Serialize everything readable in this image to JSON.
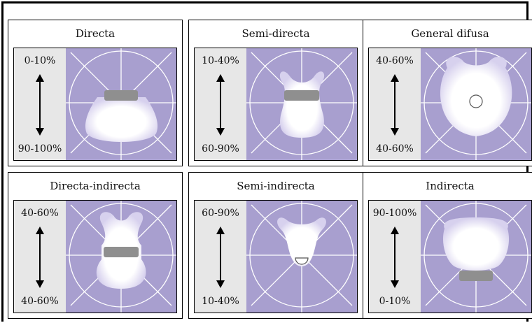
{
  "colors": {
    "bg_purple": "#a89fcf",
    "grid_line": "#ffffff",
    "side_panel": "#e7e7e7",
    "luminaire": "#8f8f8f"
  },
  "cards": [
    {
      "title": "Directa",
      "upper": "0-10%",
      "lower": "90-100%",
      "shape": "direct"
    },
    {
      "title": "Semi-directa",
      "upper": "10-40%",
      "lower": "60-90%",
      "shape": "semi-direct"
    },
    {
      "title": "General difusa",
      "upper": "40-60%",
      "lower": "40-60%",
      "shape": "diffuse"
    },
    {
      "title": "Directa-indirecta",
      "upper": "40-60%",
      "lower": "40-60%",
      "shape": "direct-indirect"
    },
    {
      "title": "Semi-indirecta",
      "upper": "60-90%",
      "lower": "10-40%",
      "shape": "semi-indirect"
    },
    {
      "title": "Indirecta",
      "upper": "90-100%",
      "lower": "0-10%",
      "shape": "indirect"
    }
  ]
}
